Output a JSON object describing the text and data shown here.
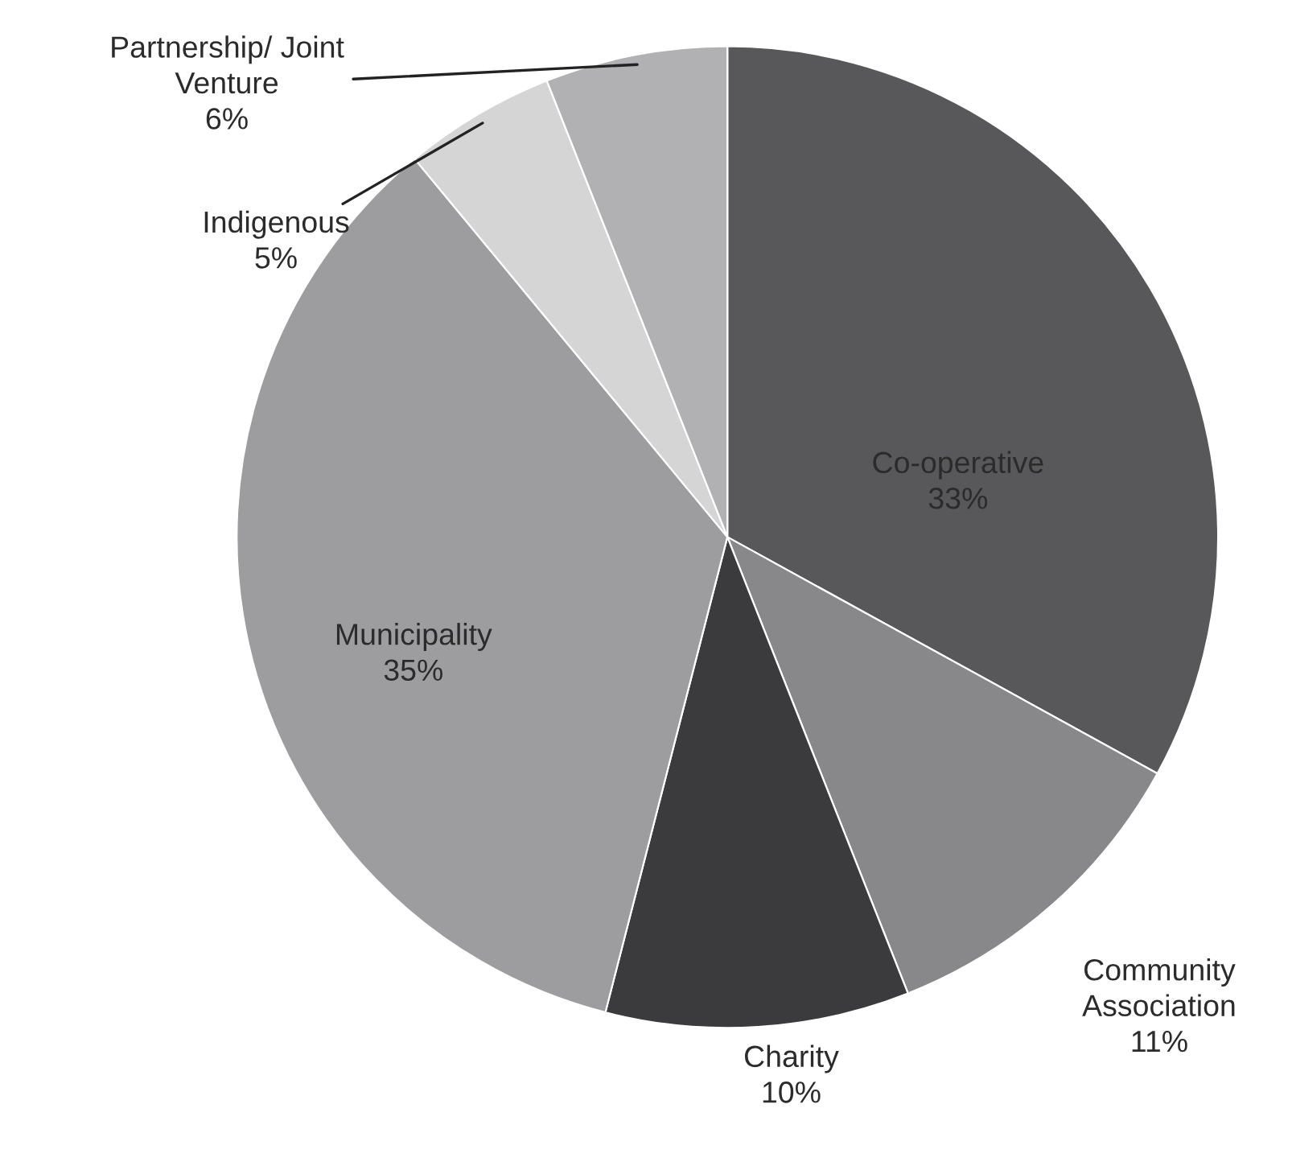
{
  "chart_data": {
    "type": "pie",
    "categories": [
      "Co-operative",
      "Community\nAssociation",
      "Charity",
      "Municipality",
      "Indigenous",
      "Partnership/ Joint\nVenture"
    ],
    "values": [
      33,
      11,
      10,
      35,
      5,
      6
    ],
    "colors": [
      "#58585b",
      "#88888b",
      "#3b3b3e",
      "#9d9d9f",
      "#d5d5d6",
      "#b1b1b3"
    ],
    "value_labels": [
      "33%",
      "11%",
      "10%",
      "35%",
      "5%",
      "6%"
    ],
    "legend": false
  }
}
